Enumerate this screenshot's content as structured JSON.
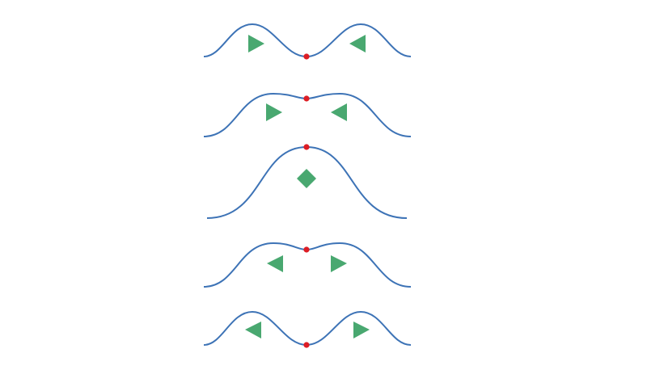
{
  "colors": {
    "background": "#ffffff",
    "curve": "#3d73b6",
    "marker": "#49a870",
    "center_dot": "#dd1d24"
  },
  "panels": [
    {
      "shape": "double-hump-deep-dip",
      "markers": [
        "right-triangle-icon",
        "left-triangle-icon"
      ]
    },
    {
      "shape": "double-hump-shallow-dip",
      "markers": [
        "right-triangle-icon",
        "left-triangle-icon"
      ]
    },
    {
      "shape": "single-hump",
      "markers": [
        "diamond-icon"
      ]
    },
    {
      "shape": "double-hump-shallow-dip",
      "markers": [
        "left-triangle-icon",
        "right-triangle-icon"
      ]
    },
    {
      "shape": "double-hump-deep-dip",
      "markers": [
        "left-triangle-icon",
        "right-triangle-icon"
      ]
    }
  ]
}
